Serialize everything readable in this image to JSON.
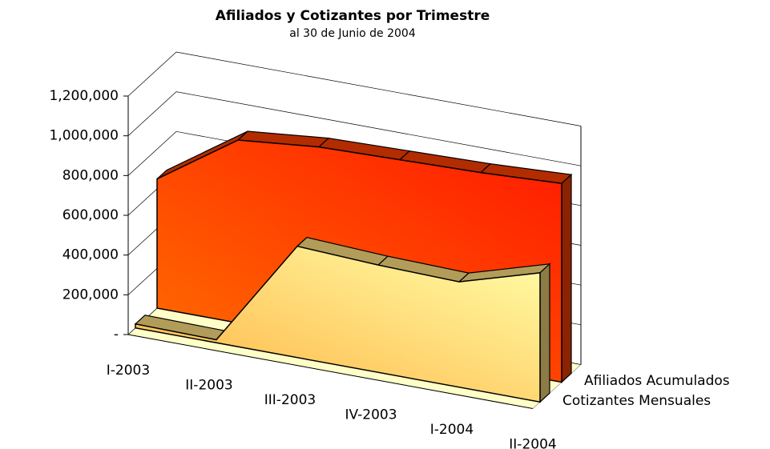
{
  "chart_data": {
    "type": "area3d",
    "title": "Afiliados y Cotizantes por Trimestre",
    "subtitle": "al 30 de Junio de 2004",
    "categories": [
      "I-2003",
      "II-2003",
      "III-2003",
      "IV-2003",
      "I-2004",
      "II-2004"
    ],
    "series": [
      {
        "name": "Cotizantes Mensuales",
        "color": "#ffe080",
        "values": [
          20000,
          15000,
          560000,
          540000,
          530000,
          650000
        ]
      },
      {
        "name": "Afiliados Acumulados",
        "color": "#ff4000",
        "values": [
          650000,
          920000,
          960000,
          970000,
          980000,
          1000000
        ]
      }
    ],
    "ylim": [
      0,
      1200000
    ],
    "yticks": [
      {
        "value": 0,
        "label": "-"
      },
      {
        "value": 200000,
        "label": "200,000"
      },
      {
        "value": 400000,
        "label": "400,000"
      },
      {
        "value": 600000,
        "label": "600,000"
      },
      {
        "value": 800000,
        "label": "800,000"
      },
      {
        "value": 1000000,
        "label": "1,000,000"
      },
      {
        "value": 1200000,
        "label": "1,200,000"
      }
    ],
    "grid": true
  }
}
